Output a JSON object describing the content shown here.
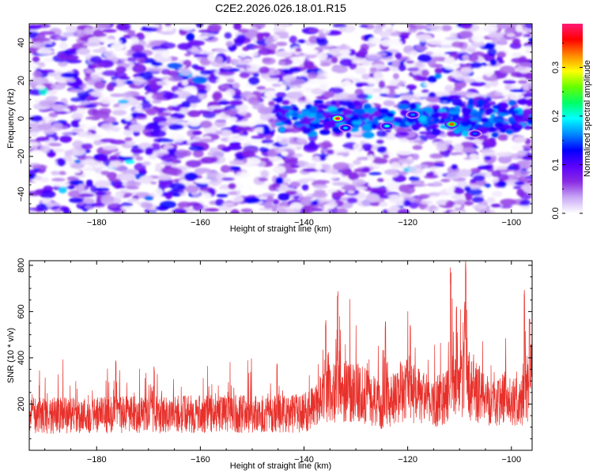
{
  "title": "C2E2.2026.026.18.01.R15",
  "chart_data": [
    {
      "type": "heatmap",
      "name": "spectrogram",
      "title": "C2E2.2026.026.18.01.R15",
      "xlabel": "Height of straight line (km)",
      "ylabel": "Frequency (Hz)",
      "xlim": [
        -193,
        -96
      ],
      "ylim": [
        -50,
        50
      ],
      "xticks": [
        -180,
        -160,
        -140,
        -120,
        -100
      ],
      "yticks": [
        -40,
        -20,
        0,
        20,
        40
      ],
      "colorbar": {
        "label": "Normalized spectral amplitude",
        "range": [
          0,
          0.39
        ],
        "ticks": [
          0.0,
          0.1,
          0.2,
          0.3
        ],
        "colors": [
          "#ffffff",
          "#c9a8f5",
          "#8a2be2",
          "#5a00ff",
          "#0000ff",
          "#0088ff",
          "#00ffff",
          "#00ff66",
          "#66ff00",
          "#ffff00",
          "#ff8800",
          "#ff0000",
          "#ff1a75"
        ]
      },
      "band": {
        "center_freq_hz": 0,
        "half_width_hz": 5,
        "x_start": -145,
        "x_end": -96
      },
      "hotspots": [
        {
          "x": -133.5,
          "y": 0,
          "value": 0.38
        },
        {
          "x": -111.5,
          "y": -3,
          "value": 0.34
        },
        {
          "x": -124,
          "y": -4,
          "value": 0.2
        },
        {
          "x": -132,
          "y": -5,
          "value": 0.18
        },
        {
          "x": -119,
          "y": 2,
          "value": 0.16
        },
        {
          "x": -107,
          "y": -8,
          "value": 0.15
        }
      ]
    },
    {
      "type": "line",
      "name": "snr",
      "xlabel": "Height of straight line (km)",
      "ylabel": "SNR (10 * v/v)",
      "xlim": [
        -193,
        -96
      ],
      "ylim": [
        0,
        820
      ],
      "xticks": [
        -180,
        -160,
        -140,
        -120,
        -100
      ],
      "yticks": [
        200,
        400,
        600,
        800
      ],
      "color": "#e8302a",
      "baseline": [
        {
          "x": -193,
          "y": 150
        },
        {
          "x": -140,
          "y": 160
        },
        {
          "x": -136,
          "y": 240
        },
        {
          "x": -130,
          "y": 260
        },
        {
          "x": -125,
          "y": 190
        },
        {
          "x": -120,
          "y": 260
        },
        {
          "x": -115,
          "y": 200
        },
        {
          "x": -110,
          "y": 290
        },
        {
          "x": -105,
          "y": 230
        },
        {
          "x": -98,
          "y": 200
        },
        {
          "x": -96,
          "y": 300
        }
      ],
      "peaks": [
        {
          "x": -133.5,
          "y": 690
        },
        {
          "x": -135.8,
          "y": 570
        },
        {
          "x": -124.3,
          "y": 580
        },
        {
          "x": -119.5,
          "y": 545
        },
        {
          "x": -111.7,
          "y": 795
        },
        {
          "x": -110.6,
          "y": 660
        },
        {
          "x": -108.8,
          "y": 820
        },
        {
          "x": -97.5,
          "y": 715
        },
        {
          "x": -96.5,
          "y": 610
        },
        {
          "x": -176.3,
          "y": 410
        },
        {
          "x": -168.9,
          "y": 375
        },
        {
          "x": -145.2,
          "y": 390
        }
      ]
    }
  ]
}
